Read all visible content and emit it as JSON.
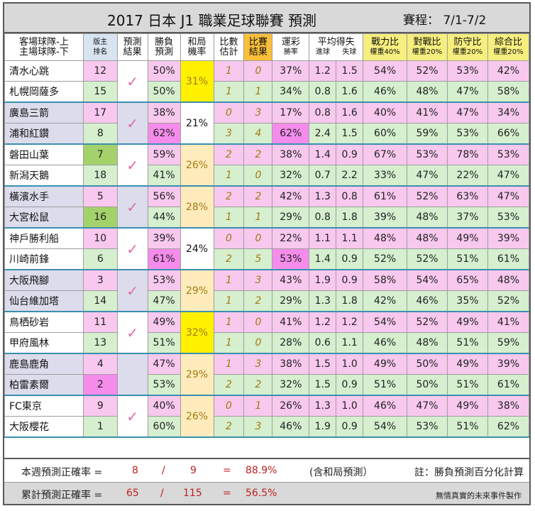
{
  "title": "2017 日本 J1 職業足球聯賽 預測",
  "schedule": "賽程： 7/1-7/2",
  "headers": {
    "team": [
      "客場球隊-上",
      "主場球隊-下"
    ],
    "rank": [
      "版主",
      "排名"
    ],
    "pred": [
      "預測",
      "結果"
    ],
    "winpred": [
      "勝負",
      "預測"
    ],
    "draw": [
      "和局",
      "機率"
    ],
    "scoreest": [
      "比數",
      "估計"
    ],
    "scoreres": [
      "比賽",
      "結果"
    ],
    "lottery": "運彩",
    "lottery_sub": "勝率",
    "avg": "平均得失",
    "avg_sub": [
      "進球",
      "失球"
    ],
    "power": "戰力比",
    "power_w": "權重40%",
    "vs": "對戰比",
    "vs_w": "權重20%",
    "def": "防守比",
    "def_w": "權重20%",
    "total": "綜合比",
    "total_w": "權重20%"
  },
  "matches": [
    {
      "draw": "31%",
      "check": "✓",
      "teams": [
        {
          "name": "清水心跳",
          "rank": "12",
          "win": "50%",
          "est": "1",
          "res": "0",
          "lot": "37%",
          "gf": "1.2",
          "ga": "1.5",
          "power": "54%",
          "vs": "52%",
          "def": "53%",
          "total": "42%"
        },
        {
          "name": "札幌岡薩多",
          "rank": "15",
          "win": "50%",
          "est": "1",
          "res": "1",
          "lot": "34%",
          "gf": "0.8",
          "ga": "1.6",
          "power": "46%",
          "vs": "48%",
          "def": "47%",
          "total": "58%"
        }
      ]
    },
    {
      "draw": "21%",
      "check": "✓",
      "teams": [
        {
          "name": "廣島三箭",
          "rank": "17",
          "win": "38%",
          "est": "0",
          "res": "3",
          "lot": "17%",
          "gf": "0.8",
          "ga": "1.6",
          "power": "40%",
          "vs": "41%",
          "def": "47%",
          "total": "34%"
        },
        {
          "name": "浦和紅鑽",
          "rank": "8",
          "win": "62%",
          "est": "3",
          "res": "4",
          "lot": "62%",
          "gf": "2.4",
          "ga": "1.5",
          "power": "60%",
          "vs": "59%",
          "def": "53%",
          "total": "66%"
        }
      ]
    },
    {
      "draw": "26%",
      "check": "✓",
      "teams": [
        {
          "name": "磐田山葉",
          "rank": "7",
          "win": "59%",
          "est": "2",
          "res": "2",
          "lot": "38%",
          "gf": "1.4",
          "ga": "0.9",
          "power": "67%",
          "vs": "53%",
          "def": "78%",
          "total": "53%"
        },
        {
          "name": "新潟天鵝",
          "rank": "18",
          "win": "41%",
          "est": "1",
          "res": "0",
          "lot": "32%",
          "gf": "0.7",
          "ga": "2.2",
          "power": "33%",
          "vs": "47%",
          "def": "22%",
          "total": "47%"
        }
      ]
    },
    {
      "draw": "28%",
      "check": "✓",
      "teams": [
        {
          "name": "橫濱水手",
          "rank": "5",
          "win": "56%",
          "est": "2",
          "res": "2",
          "lot": "42%",
          "gf": "1.3",
          "ga": "0.8",
          "power": "61%",
          "vs": "52%",
          "def": "63%",
          "total": "47%"
        },
        {
          "name": "大宮松鼠",
          "rank": "16",
          "win": "44%",
          "est": "1",
          "res": "1",
          "lot": "29%",
          "gf": "0.8",
          "ga": "1.8",
          "power": "39%",
          "vs": "48%",
          "def": "37%",
          "total": "53%"
        }
      ]
    },
    {
      "draw": "24%",
      "check": "✓",
      "teams": [
        {
          "name": "神戶勝利船",
          "rank": "10",
          "win": "39%",
          "est": "0",
          "res": "0",
          "lot": "22%",
          "gf": "1.1",
          "ga": "1.1",
          "power": "48%",
          "vs": "48%",
          "def": "49%",
          "total": "39%"
        },
        {
          "name": "川崎前鋒",
          "rank": "6",
          "win": "61%",
          "est": "2",
          "res": "5",
          "lot": "53%",
          "gf": "1.4",
          "ga": "0.9",
          "power": "52%",
          "vs": "52%",
          "def": "51%",
          "total": "61%"
        }
      ]
    },
    {
      "draw": "29%",
      "check": "✓",
      "teams": [
        {
          "name": "大阪飛腳",
          "rank": "3",
          "win": "53%",
          "est": "1",
          "res": "3",
          "lot": "43%",
          "gf": "1.9",
          "ga": "0.9",
          "power": "58%",
          "vs": "54%",
          "def": "65%",
          "total": "48%"
        },
        {
          "name": "仙台維加塔",
          "rank": "14",
          "win": "47%",
          "est": "1",
          "res": "2",
          "lot": "29%",
          "gf": "1.3",
          "ga": "1.8",
          "power": "42%",
          "vs": "46%",
          "def": "35%",
          "total": "52%"
        }
      ]
    },
    {
      "draw": "32%",
      "check": "✓",
      "teams": [
        {
          "name": "鳥栖砂岩",
          "rank": "11",
          "win": "49%",
          "est": "1",
          "res": "0",
          "lot": "41%",
          "gf": "1.2",
          "ga": "1.2",
          "power": "54%",
          "vs": "52%",
          "def": "49%",
          "total": "41%"
        },
        {
          "name": "甲府風林",
          "rank": "13",
          "win": "51%",
          "est": "1",
          "res": "0",
          "lot": "28%",
          "gf": "0.6",
          "ga": "1.1",
          "power": "46%",
          "vs": "48%",
          "def": "51%",
          "total": "59%"
        }
      ]
    },
    {
      "draw": "29%",
      "check": "",
      "teams": [
        {
          "name": "鹿島鹿角",
          "rank": "4",
          "win": "47%",
          "est": "1",
          "res": "3",
          "lot": "38%",
          "gf": "1.5",
          "ga": "1.0",
          "power": "49%",
          "vs": "50%",
          "def": "49%",
          "total": "39%"
        },
        {
          "name": "柏雷素爾",
          "rank": "2",
          "win": "53%",
          "est": "2",
          "res": "2",
          "lot": "32%",
          "gf": "1.5",
          "ga": "0.9",
          "power": "51%",
          "vs": "50%",
          "def": "51%",
          "total": "61%"
        }
      ]
    },
    {
      "draw": "26%",
      "check": "✓",
      "teams": [
        {
          "name": "FC東京",
          "rank": "9",
          "win": "40%",
          "est": "0",
          "res": "1",
          "lot": "26%",
          "gf": "1.3",
          "ga": "1.0",
          "power": "46%",
          "vs": "47%",
          "def": "49%",
          "total": "38%"
        },
        {
          "name": "大阪櫻花",
          "rank": "1",
          "win": "60%",
          "est": "2",
          "res": "3",
          "lot": "46%",
          "gf": "1.9",
          "ga": "0.9",
          "power": "54%",
          "vs": "53%",
          "def": "51%",
          "total": "62%"
        }
      ]
    }
  ],
  "footer": {
    "week_label": "本週預測正確率 =",
    "week_correct": "8",
    "week_slash": "/",
    "week_total": "9",
    "week_eq": "=",
    "week_pct": "88.9%",
    "week_note": "(含和局預測）",
    "note": "註：勝負預測百分化計算",
    "cum_label": "累計預測正確率 =",
    "cum_correct": "65",
    "cum_slash": "/",
    "cum_total": "115",
    "cum_eq": "=",
    "cum_pct": "56.5%",
    "credit": "無情真實的未來事件製作"
  }
}
